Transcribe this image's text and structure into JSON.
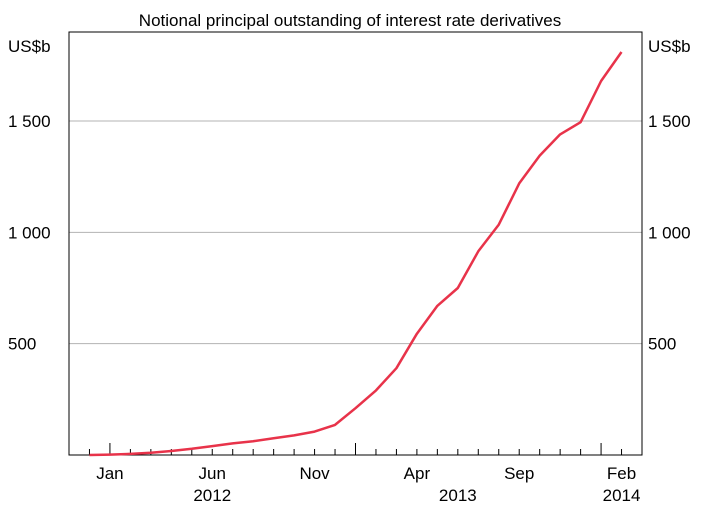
{
  "chart_data": {
    "type": "line",
    "title": "Notional principal outstanding of interest rate derivatives",
    "ylabel_left": "US$b",
    "ylabel_right": "US$b",
    "ylim": [
      0,
      1900
    ],
    "yticks": [
      500,
      1000,
      1500
    ],
    "ytick_labels": [
      "500",
      "1 000",
      "1 500"
    ],
    "grid": true,
    "x_months": [
      {
        "label": "Jan",
        "date": "2012-01"
      },
      {
        "label": "Jun",
        "date": "2012-06"
      },
      {
        "label": "Nov",
        "date": "2012-11"
      },
      {
        "label": "Apr",
        "date": "2013-04"
      },
      {
        "label": "Sep",
        "date": "2013-09"
      },
      {
        "label": "Feb",
        "date": "2014-02"
      }
    ],
    "x_years": [
      {
        "label": "2012",
        "date": "2012-06"
      },
      {
        "label": "2013",
        "date": "2013-06"
      },
      {
        "label": "2014",
        "date": "2014-02"
      }
    ],
    "xlim": [
      "2011-11",
      "2014-03"
    ],
    "line_color": "#e8334a",
    "series": [
      {
        "x": [
          "2011-12",
          "2012-01",
          "2012-02",
          "2012-03",
          "2012-04",
          "2012-05",
          "2012-06",
          "2012-07",
          "2012-08",
          "2012-09",
          "2012-10",
          "2012-11",
          "2012-12",
          "2013-01",
          "2013-02",
          "2013-03",
          "2013-04",
          "2013-05",
          "2013-06",
          "2013-07",
          "2013-08",
          "2013-09",
          "2013-10",
          "2013-11",
          "2013-12",
          "2014-01",
          "2014-02"
        ],
        "values": [
          0,
          2,
          5,
          10,
          18,
          28,
          40,
          52,
          62,
          75,
          88,
          105,
          135,
          210,
          290,
          390,
          545,
          670,
          750,
          915,
          1035,
          1220,
          1345,
          1440,
          1495,
          1680,
          1810
        ]
      }
    ]
  }
}
